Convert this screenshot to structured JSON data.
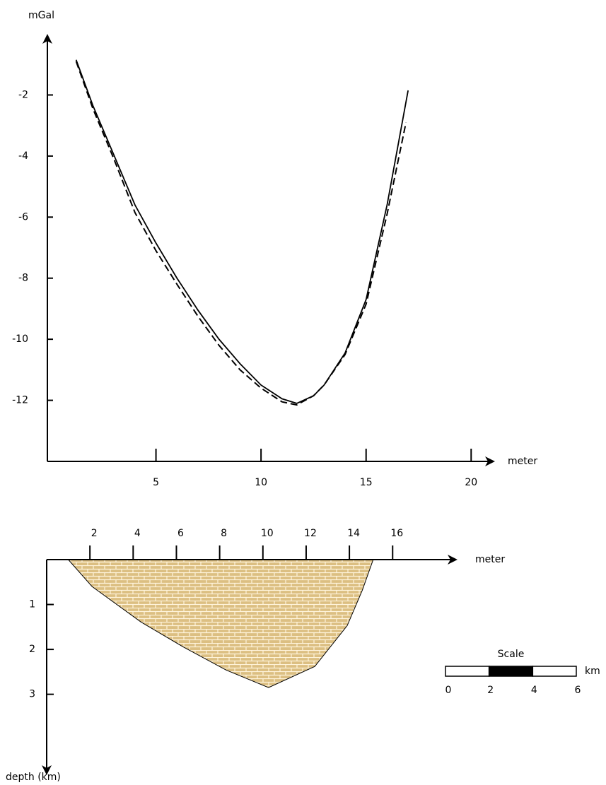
{
  "chart_data": [
    {
      "type": "line",
      "y_label": "mGal",
      "x_label": "meter",
      "xlim": [
        0,
        21
      ],
      "xticks": [
        5,
        10,
        15,
        20
      ],
      "ylim": [
        -14,
        0
      ],
      "yticks": [
        -2,
        -4,
        -6,
        -8,
        -10,
        -12
      ],
      "series": [
        {
          "style": "solid",
          "color": "#000000",
          "x": [
            1.2,
            2,
            3,
            4,
            5,
            6,
            7,
            8,
            9,
            10,
            11,
            11.7,
            12.5,
            13,
            14,
            15,
            16,
            17
          ],
          "values": [
            -0.85,
            -2.35,
            -3.97,
            -5.6,
            -6.85,
            -8.0,
            -9.05,
            -10.0,
            -10.8,
            -11.5,
            -11.95,
            -12.1,
            -11.85,
            -11.5,
            -10.45,
            -8.7,
            -5.6,
            -1.85
          ]
        },
        {
          "style": "dashed",
          "color": "#000000",
          "x": [
            1.2,
            2,
            3,
            4,
            5,
            6,
            7,
            8,
            9,
            10,
            11,
            11.7,
            12.5,
            13,
            14,
            15,
            16,
            16.9
          ],
          "values": [
            -0.9,
            -2.45,
            -4.1,
            -5.85,
            -7.1,
            -8.2,
            -9.25,
            -10.2,
            -11.0,
            -11.6,
            -12.05,
            -12.15,
            -11.85,
            -11.5,
            -10.5,
            -8.85,
            -5.9,
            -2.9
          ]
        }
      ]
    },
    {
      "type": "cross-section",
      "x_label": "meter",
      "y_label": "depth (km)",
      "xlim": [
        0,
        19
      ],
      "xticks": [
        2,
        4,
        6,
        8,
        10,
        12,
        14,
        16
      ],
      "ylim": [
        0,
        4.8
      ],
      "yticks": [
        1,
        2,
        3
      ],
      "fill": "#dcbf82",
      "x": [
        1.0,
        2.1,
        4.36,
        6.3,
        8.3,
        10.26,
        12.4,
        13.9,
        14.6,
        15.1
      ],
      "values": [
        0,
        0.6,
        1.39,
        1.94,
        2.46,
        2.85,
        2.38,
        1.47,
        0.68,
        0
      ],
      "scale_bar": {
        "title": "Scale",
        "unit": "km",
        "ticks": [
          0,
          2,
          4,
          6
        ]
      }
    }
  ]
}
